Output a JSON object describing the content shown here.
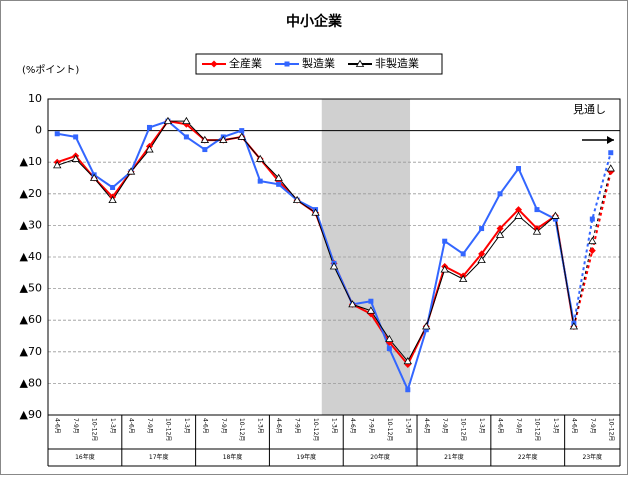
{
  "chart_data": {
    "type": "line",
    "title": "中小企業",
    "y_label": "(%ポイント)",
    "annotation": "見通し",
    "categories": [
      "4-6月",
      "7-9月",
      "10-12月",
      "1-3月",
      "4-6月",
      "7-9月",
      "10-12月",
      "1-3月",
      "4-6月",
      "7-9月",
      "10-12月",
      "1-3月",
      "4-6月",
      "7-9月",
      "10-12月",
      "1-3月",
      "4-6月",
      "7-9月",
      "10-12月",
      "1-3月",
      "4-6月",
      "7-9月",
      "10-12月",
      "1-3月",
      "4-6月",
      "7-9月",
      "10-12月",
      "1-3月",
      "4-6月",
      "7-9月",
      "10-12月"
    ],
    "category_groups": [
      {
        "label": "16年度",
        "span": 4
      },
      {
        "label": "17年度",
        "span": 4
      },
      {
        "label": "18年度",
        "span": 4
      },
      {
        "label": "19年度",
        "span": 4
      },
      {
        "label": "20年度",
        "span": 4
      },
      {
        "label": "21年度",
        "span": 4
      },
      {
        "label": "22年度",
        "span": 4
      },
      {
        "label": "23年度",
        "span": 3
      }
    ],
    "series": [
      {
        "name": "全産業",
        "color": "#ff0000",
        "marker": "diamond",
        "values": [
          -10,
          -8,
          -15,
          -21,
          -13,
          -5,
          3,
          2,
          -3,
          -3,
          -2,
          -9,
          -16,
          -22,
          -26,
          -42,
          -55,
          -58,
          -67,
          -74,
          -62,
          -43,
          -46,
          -39,
          -31,
          -25,
          -31,
          -27,
          -62,
          -38,
          -13
        ]
      },
      {
        "name": "製造業",
        "color": "#3366ff",
        "marker": "square",
        "values": [
          -1,
          -2,
          -14,
          -18,
          -13,
          1,
          3,
          -2,
          -6,
          -2,
          0,
          -16,
          -17,
          -22,
          -25,
          -42,
          -55,
          -54,
          -69,
          -82,
          -63,
          -35,
          -39,
          -31,
          -20,
          -12,
          -25,
          -28,
          -61,
          -28,
          -7
        ]
      },
      {
        "name": "非製造業",
        "color": "#000000",
        "marker": "triangle",
        "values": [
          -11,
          -9,
          -15,
          -22,
          -13,
          -6,
          3,
          3,
          -3,
          -3,
          -2,
          -9,
          -15,
          -22,
          -26,
          -43,
          -55,
          -57,
          -66,
          -73,
          -62,
          -44,
          -47,
          -41,
          -33,
          -27,
          -32,
          -27,
          -62,
          -35,
          -12
        ]
      }
    ],
    "ylim": [
      -90,
      10
    ],
    "yticks": [
      {
        "value": -90,
        "label": "▲90"
      },
      {
        "value": -80,
        "label": "▲80"
      },
      {
        "value": -70,
        "label": "▲70"
      },
      {
        "value": -60,
        "label": "▲60"
      },
      {
        "value": -50,
        "label": "▲50"
      },
      {
        "value": -40,
        "label": "▲40"
      },
      {
        "value": -30,
        "label": "▲30"
      },
      {
        "value": -20,
        "label": "▲20"
      },
      {
        "value": -10,
        "label": "▲10"
      },
      0,
      10
    ],
    "grid": true
  }
}
